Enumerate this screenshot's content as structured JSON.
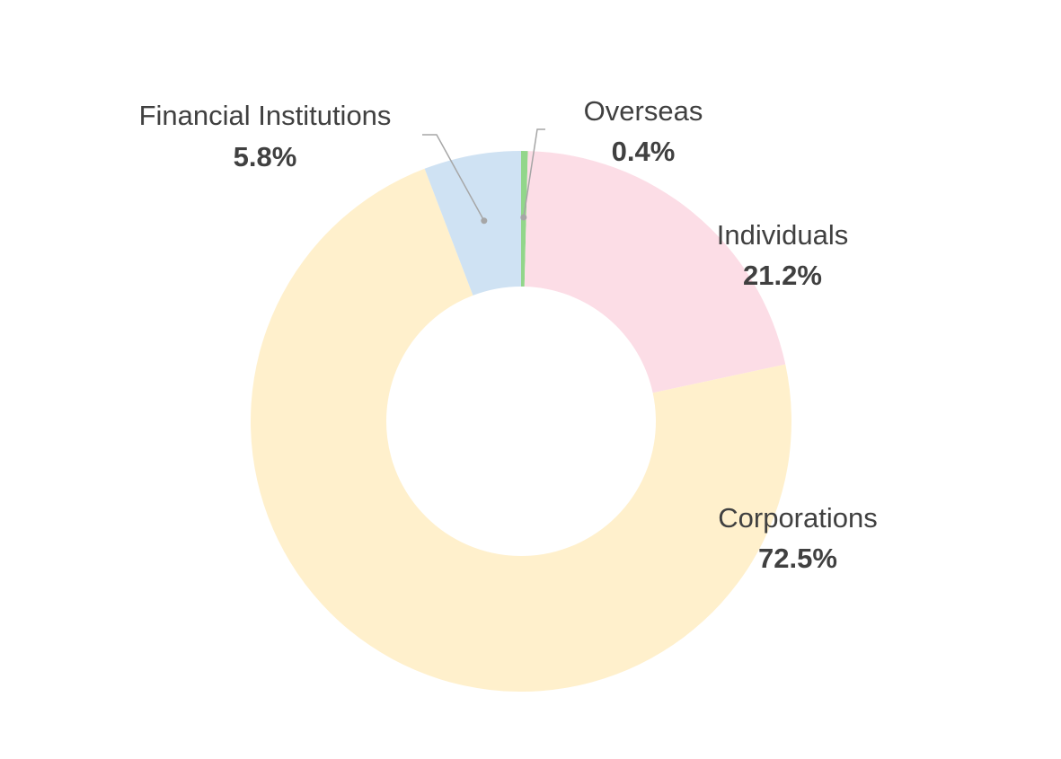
{
  "chart_data": {
    "type": "pie",
    "donut": true,
    "title": "",
    "legend": "none",
    "slices": [
      {
        "name": "Overseas",
        "value": 0.4,
        "label": "0.4%",
        "color": "#92d68a"
      },
      {
        "name": "Individuals",
        "value": 21.2,
        "label": "21.2%",
        "color": "#fcdde6"
      },
      {
        "name": "Corporations",
        "value": 72.5,
        "label": "72.5%",
        "color": "#fff0cc"
      },
      {
        "name": "Financial Institutions",
        "value": 5.8,
        "label": "5.8%",
        "color": "#cfe2f3"
      }
    ]
  }
}
